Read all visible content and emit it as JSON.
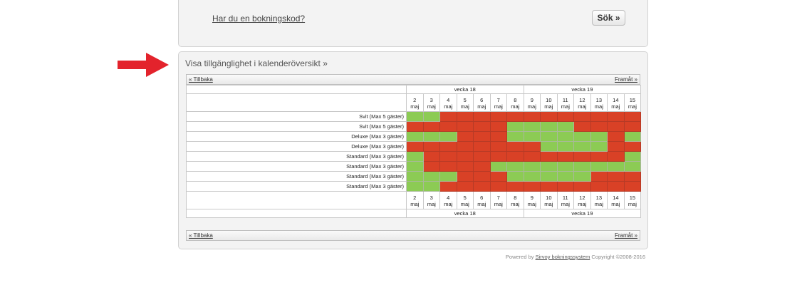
{
  "top": {
    "booking_code_link": "Har du en bokningskod?",
    "search_button": "Sök »"
  },
  "calendar": {
    "heading": "Visa tillgänglighet i kalenderöversikt »",
    "nav_back": "« Tillbaka",
    "nav_forward": "Framåt »",
    "weeks": [
      {
        "label": "vecka 18",
        "span": 7
      },
      {
        "label": "vecka 19",
        "span": 7
      }
    ],
    "day_unit": "maj",
    "days": [
      "2",
      "3",
      "4",
      "5",
      "6",
      "7",
      "8",
      "9",
      "10",
      "11",
      "12",
      "13",
      "14",
      "15"
    ],
    "legend_colors": {
      "available": "#8ccb54",
      "booked": "#d94126"
    },
    "rooms": [
      {
        "name": "Svit (Max 5 gäster)",
        "availability": [
          1,
          1,
          0,
          0,
          0,
          0,
          0,
          0,
          0,
          0,
          0,
          0,
          0,
          0
        ]
      },
      {
        "name": "Svit (Max 5 gäster)",
        "availability": [
          0,
          0,
          0,
          0,
          0,
          0,
          1,
          1,
          1,
          1,
          0,
          0,
          0,
          0
        ]
      },
      {
        "name": "Deluxe (Max 3 gäster)",
        "availability": [
          1,
          1,
          1,
          0,
          0,
          0,
          1,
          1,
          1,
          1,
          1,
          1,
          0,
          1
        ]
      },
      {
        "name": "Deluxe (Max 3 gäster)",
        "availability": [
          0,
          0,
          0,
          0,
          0,
          0,
          0,
          0,
          1,
          1,
          1,
          1,
          0,
          0
        ]
      },
      {
        "name": "Standard (Max 3 gäster)",
        "availability": [
          1,
          0,
          0,
          0,
          0,
          0,
          0,
          0,
          0,
          0,
          0,
          0,
          0,
          1
        ]
      },
      {
        "name": "Standard (Max 3 gäster)",
        "availability": [
          1,
          0,
          0,
          0,
          0,
          1,
          1,
          1,
          1,
          1,
          1,
          1,
          1,
          1
        ]
      },
      {
        "name": "Standard (Max 3 gäster)",
        "availability": [
          1,
          1,
          1,
          0,
          0,
          0,
          1,
          1,
          1,
          1,
          1,
          0,
          0,
          0
        ]
      },
      {
        "name": "Standard (Max 3 gäster)",
        "availability": [
          1,
          1,
          0,
          0,
          0,
          0,
          0,
          0,
          0,
          0,
          0,
          0,
          0,
          0
        ]
      }
    ]
  },
  "footer": {
    "powered_by": "Powered by",
    "link": "Sirvoy bokningssystem",
    "copyright": "Copyright ©2008-2016"
  }
}
